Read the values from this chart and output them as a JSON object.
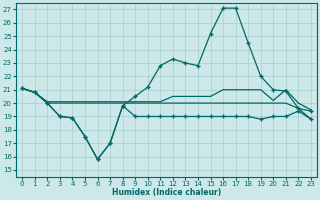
{
  "xlabel": "Humidex (Indice chaleur)",
  "ylabel": "",
  "xlim": [
    -0.5,
    23.5
  ],
  "ylim": [
    14.5,
    27.5
  ],
  "yticks": [
    15,
    16,
    17,
    18,
    19,
    20,
    21,
    22,
    23,
    24,
    25,
    26,
    27
  ],
  "xticks": [
    0,
    1,
    2,
    3,
    4,
    5,
    6,
    7,
    8,
    9,
    10,
    11,
    12,
    13,
    14,
    15,
    16,
    17,
    18,
    19,
    20,
    21,
    22,
    23
  ],
  "bg_color": "#cce8e8",
  "grid_color": "#aacece",
  "line_color": "#006868",
  "curve_x": [
    0,
    1,
    2,
    3,
    4,
    5,
    6,
    7,
    8,
    9,
    10,
    11,
    12,
    13,
    14,
    15,
    16,
    17,
    18,
    19,
    20,
    21,
    22,
    23
  ],
  "curve_y": [
    21.1,
    20.8,
    20.0,
    19.0,
    18.9,
    17.5,
    15.8,
    17.0,
    19.8,
    20.5,
    21.2,
    22.8,
    23.3,
    23.0,
    22.8,
    25.2,
    27.1,
    27.1,
    24.5,
    22.0,
    21.0,
    20.9,
    19.6,
    19.4
  ],
  "flat1_x": [
    0,
    1,
    2,
    3,
    4,
    5,
    6,
    7,
    8,
    9,
    10,
    11,
    12,
    13,
    14,
    15,
    16,
    17,
    18,
    19,
    20,
    21,
    22,
    23
  ],
  "flat1_y": [
    21.1,
    20.8,
    20.1,
    20.1,
    20.1,
    20.1,
    20.1,
    20.1,
    20.1,
    20.1,
    20.1,
    20.1,
    20.5,
    20.5,
    20.5,
    20.5,
    21.0,
    21.0,
    21.0,
    21.0,
    20.2,
    21.0,
    20.0,
    19.5
  ],
  "flat2_x": [
    0,
    1,
    2,
    3,
    4,
    5,
    6,
    7,
    8,
    9,
    10,
    11,
    12,
    13,
    14,
    15,
    16,
    17,
    18,
    19,
    20,
    21,
    22,
    23
  ],
  "flat2_y": [
    21.1,
    20.8,
    20.0,
    20.0,
    20.0,
    20.0,
    20.0,
    20.0,
    20.0,
    20.0,
    20.0,
    20.0,
    20.0,
    20.0,
    20.0,
    20.0,
    20.0,
    20.0,
    20.0,
    20.0,
    20.0,
    20.0,
    19.6,
    18.8
  ],
  "low_x": [
    0,
    1,
    2,
    3,
    4,
    5,
    6,
    7,
    8,
    9,
    10,
    11,
    12,
    13,
    14,
    15,
    16,
    17,
    18,
    19,
    20,
    21,
    22,
    23
  ],
  "low_y": [
    21.1,
    20.8,
    20.0,
    19.0,
    18.9,
    17.5,
    15.8,
    17.0,
    19.8,
    19.0,
    19.0,
    19.0,
    19.0,
    19.0,
    19.0,
    19.0,
    19.0,
    19.0,
    19.0,
    18.8,
    19.0,
    19.0,
    19.4,
    18.8
  ]
}
